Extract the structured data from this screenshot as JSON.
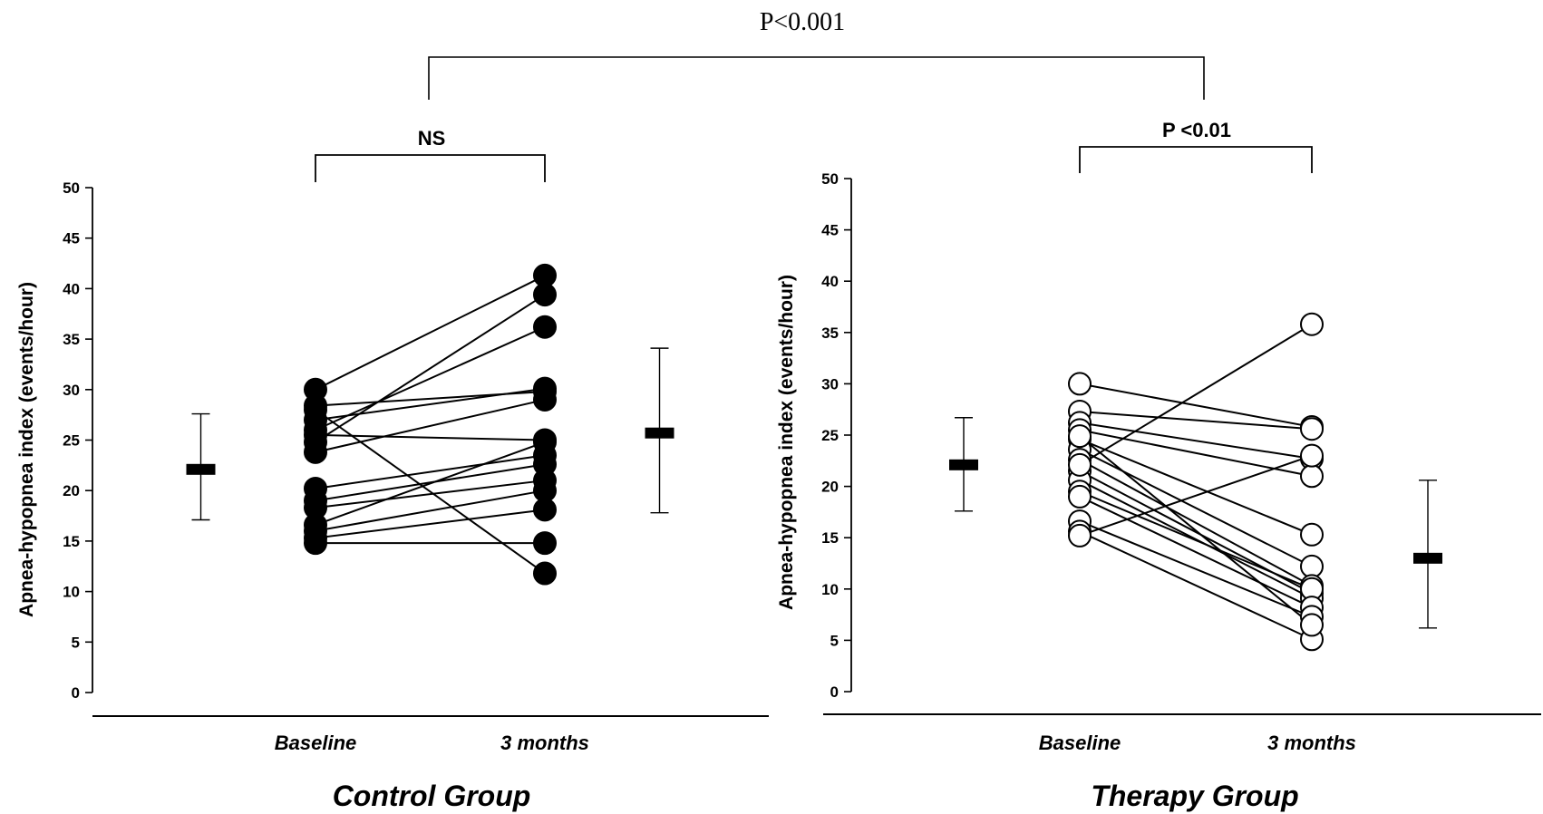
{
  "comparison": {
    "label": "P<0.001"
  },
  "chart_data": [
    {
      "type": "line",
      "title": "Control Group",
      "bracket_label": "NS",
      "ylabel": "Apnea-hypopnea index (events/hour)",
      "xlabel": "",
      "ylim": [
        0,
        50
      ],
      "yticks": [
        0,
        5,
        10,
        15,
        20,
        25,
        30,
        35,
        40,
        45,
        50
      ],
      "categories": [
        "Baseline",
        "3 months"
      ],
      "marker": "filled",
      "pairs": [
        [
          30,
          41.3
        ],
        [
          28.4,
          29.8
        ],
        [
          27,
          30.1
        ],
        [
          26,
          36.2
        ],
        [
          25.5,
          25
        ],
        [
          24.8,
          39.4
        ],
        [
          23.8,
          29
        ],
        [
          20.2,
          23.5
        ],
        [
          19,
          22.6
        ],
        [
          18.3,
          21
        ],
        [
          16.6,
          24.8
        ],
        [
          16,
          20
        ],
        [
          15.3,
          18.1
        ],
        [
          14.8,
          14.8
        ],
        [
          28,
          11.8
        ]
      ],
      "summary": [
        {
          "category_position": -0.5,
          "mean": 22.1,
          "low": 17.1,
          "high": 27.6
        },
        {
          "category_position": 1.5,
          "mean": 25.7,
          "low": 17.8,
          "high": 34.1
        }
      ]
    },
    {
      "type": "line",
      "title": "Therapy Group",
      "bracket_label": "P <0.01",
      "ylabel": "Apnea-hypopnea index (events/hour)",
      "xlabel": "",
      "ylim": [
        0,
        50
      ],
      "yticks": [
        0,
        5,
        10,
        15,
        20,
        25,
        30,
        35,
        40,
        45,
        50
      ],
      "categories": [
        "Baseline",
        "3 months"
      ],
      "marker": "open",
      "pairs": [
        [
          30,
          25.8
        ],
        [
          27.3,
          25.6
        ],
        [
          26.2,
          22.7
        ],
        [
          25.5,
          21
        ],
        [
          24.6,
          15.3
        ],
        [
          23.6,
          12.2
        ],
        [
          22.6,
          10.3
        ],
        [
          21.5,
          9.6
        ],
        [
          20.6,
          9.1
        ],
        [
          19.5,
          10
        ],
        [
          19,
          8.2
        ],
        [
          16.6,
          7.3
        ],
        [
          15.6,
          5.1
        ],
        [
          15.2,
          23
        ],
        [
          22.1,
          35.8
        ],
        [
          24.9,
          6.5
        ]
      ],
      "summary": [
        {
          "category_position": -0.5,
          "mean": 22.1,
          "low": 17.6,
          "high": 26.7
        },
        {
          "category_position": 1.5,
          "mean": 13,
          "low": 6.2,
          "high": 20.6
        }
      ]
    }
  ]
}
